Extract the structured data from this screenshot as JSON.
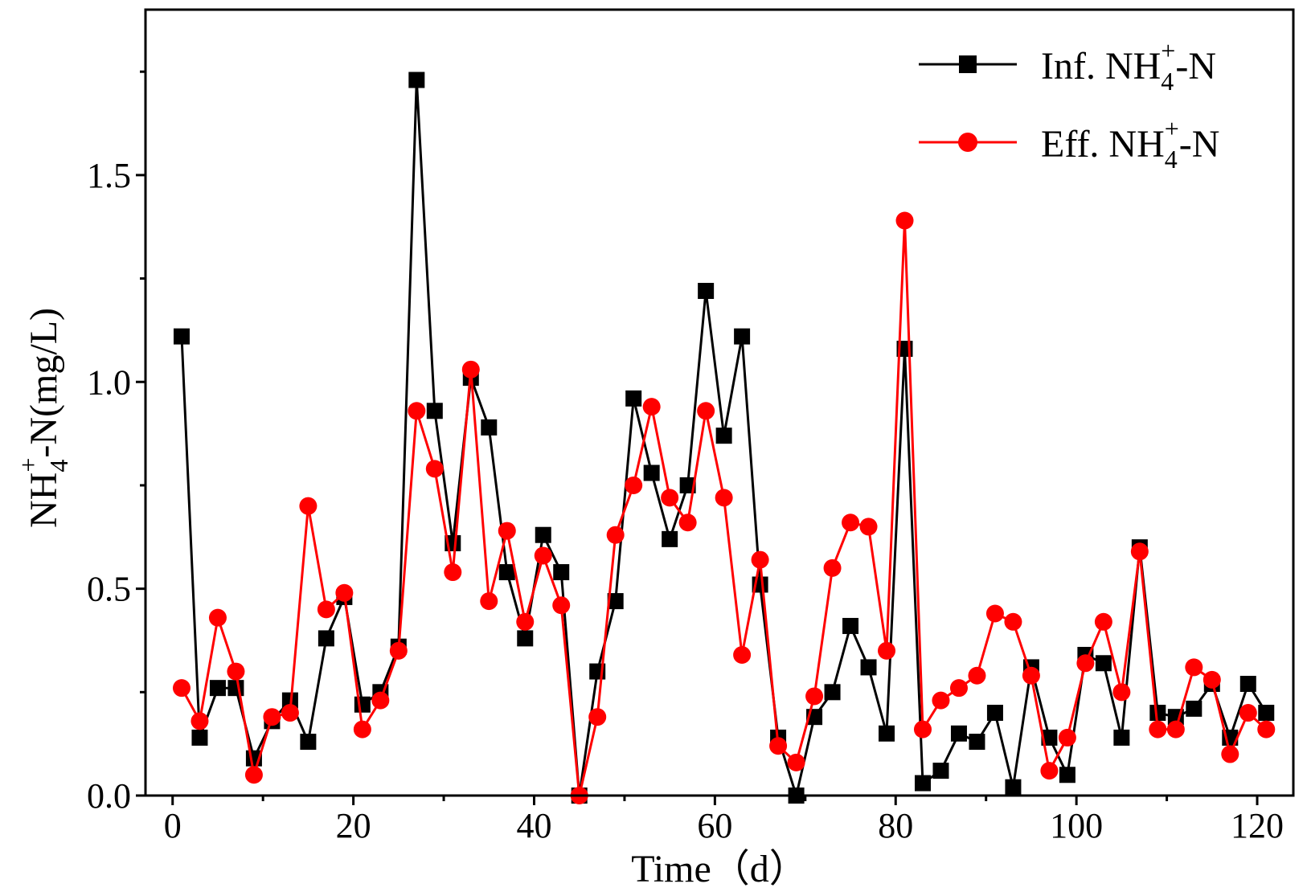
{
  "chart_data": {
    "type": "line",
    "title": "",
    "xlabel": "Time（d）",
    "ylabel": {
      "base": "NH",
      "sub": "4",
      "sup": "+",
      "rest": "-N(mg/L)"
    },
    "xlim": [
      -3,
      124
    ],
    "ylim": [
      0,
      1.9
    ],
    "xticks": [
      0,
      20,
      40,
      60,
      80,
      100,
      120
    ],
    "yticks": [
      0.0,
      0.5,
      1.0,
      1.5
    ],
    "ytick_labels": [
      "0.0",
      "0.5",
      "1.0",
      "1.5"
    ],
    "xtick_labels": [
      "0",
      "20",
      "40",
      "60",
      "80",
      "100",
      "120"
    ],
    "x": [
      1,
      3,
      5,
      7,
      9,
      11,
      13,
      15,
      17,
      19,
      21,
      23,
      25,
      27,
      29,
      31,
      33,
      35,
      37,
      39,
      41,
      43,
      45,
      47,
      49,
      51,
      53,
      55,
      57,
      59,
      61,
      63,
      65,
      67,
      69,
      71,
      73,
      75,
      77,
      79,
      81,
      83,
      85,
      87,
      89,
      91,
      93,
      95,
      97,
      99,
      101,
      103,
      105,
      107,
      109,
      111,
      113,
      115,
      117,
      119,
      121
    ],
    "series": [
      {
        "name": "Inf. NH4+-N",
        "legend": {
          "base": "Inf. NH",
          "sub": "4",
          "sup": "+",
          "rest": "-N"
        },
        "color": "#000000",
        "marker": "square",
        "values": [
          1.11,
          0.14,
          0.26,
          0.26,
          0.09,
          0.18,
          0.23,
          0.13,
          0.38,
          0.48,
          0.22,
          0.25,
          0.36,
          1.73,
          0.93,
          0.61,
          1.01,
          0.89,
          0.54,
          0.38,
          0.63,
          0.54,
          0.0,
          0.3,
          0.47,
          0.96,
          0.78,
          0.62,
          0.75,
          1.22,
          0.87,
          1.11,
          0.51,
          0.14,
          0.0,
          0.19,
          0.25,
          0.41,
          0.31,
          0.15,
          1.08,
          0.03,
          0.06,
          0.15,
          0.13,
          0.2,
          0.02,
          0.31,
          0.14,
          0.05,
          0.34,
          0.32,
          0.14,
          0.6,
          0.2,
          0.19,
          0.21,
          0.27,
          0.14,
          0.27,
          0.2
        ]
      },
      {
        "name": "Eff. NH4+-N",
        "legend": {
          "base": "Eff. NH",
          "sub": "4",
          "sup": "+",
          "rest": "-N"
        },
        "color": "#ff0000",
        "marker": "circle",
        "values": [
          0.26,
          0.18,
          0.43,
          0.3,
          0.05,
          0.19,
          0.2,
          0.7,
          0.45,
          0.49,
          0.16,
          0.23,
          0.35,
          0.93,
          0.79,
          0.54,
          1.03,
          0.47,
          0.64,
          0.42,
          0.58,
          0.46,
          0.0,
          0.19,
          0.63,
          0.75,
          0.94,
          0.72,
          0.66,
          0.93,
          0.72,
          0.34,
          0.57,
          0.12,
          0.08,
          0.24,
          0.55,
          0.66,
          0.65,
          0.35,
          1.39,
          0.16,
          0.23,
          0.26,
          0.29,
          0.44,
          0.42,
          0.29,
          0.06,
          0.14,
          0.32,
          0.42,
          0.25,
          0.59,
          0.16,
          0.16,
          0.31,
          0.28,
          0.1,
          0.2,
          0.16
        ]
      }
    ],
    "legend_position": "top-right"
  }
}
